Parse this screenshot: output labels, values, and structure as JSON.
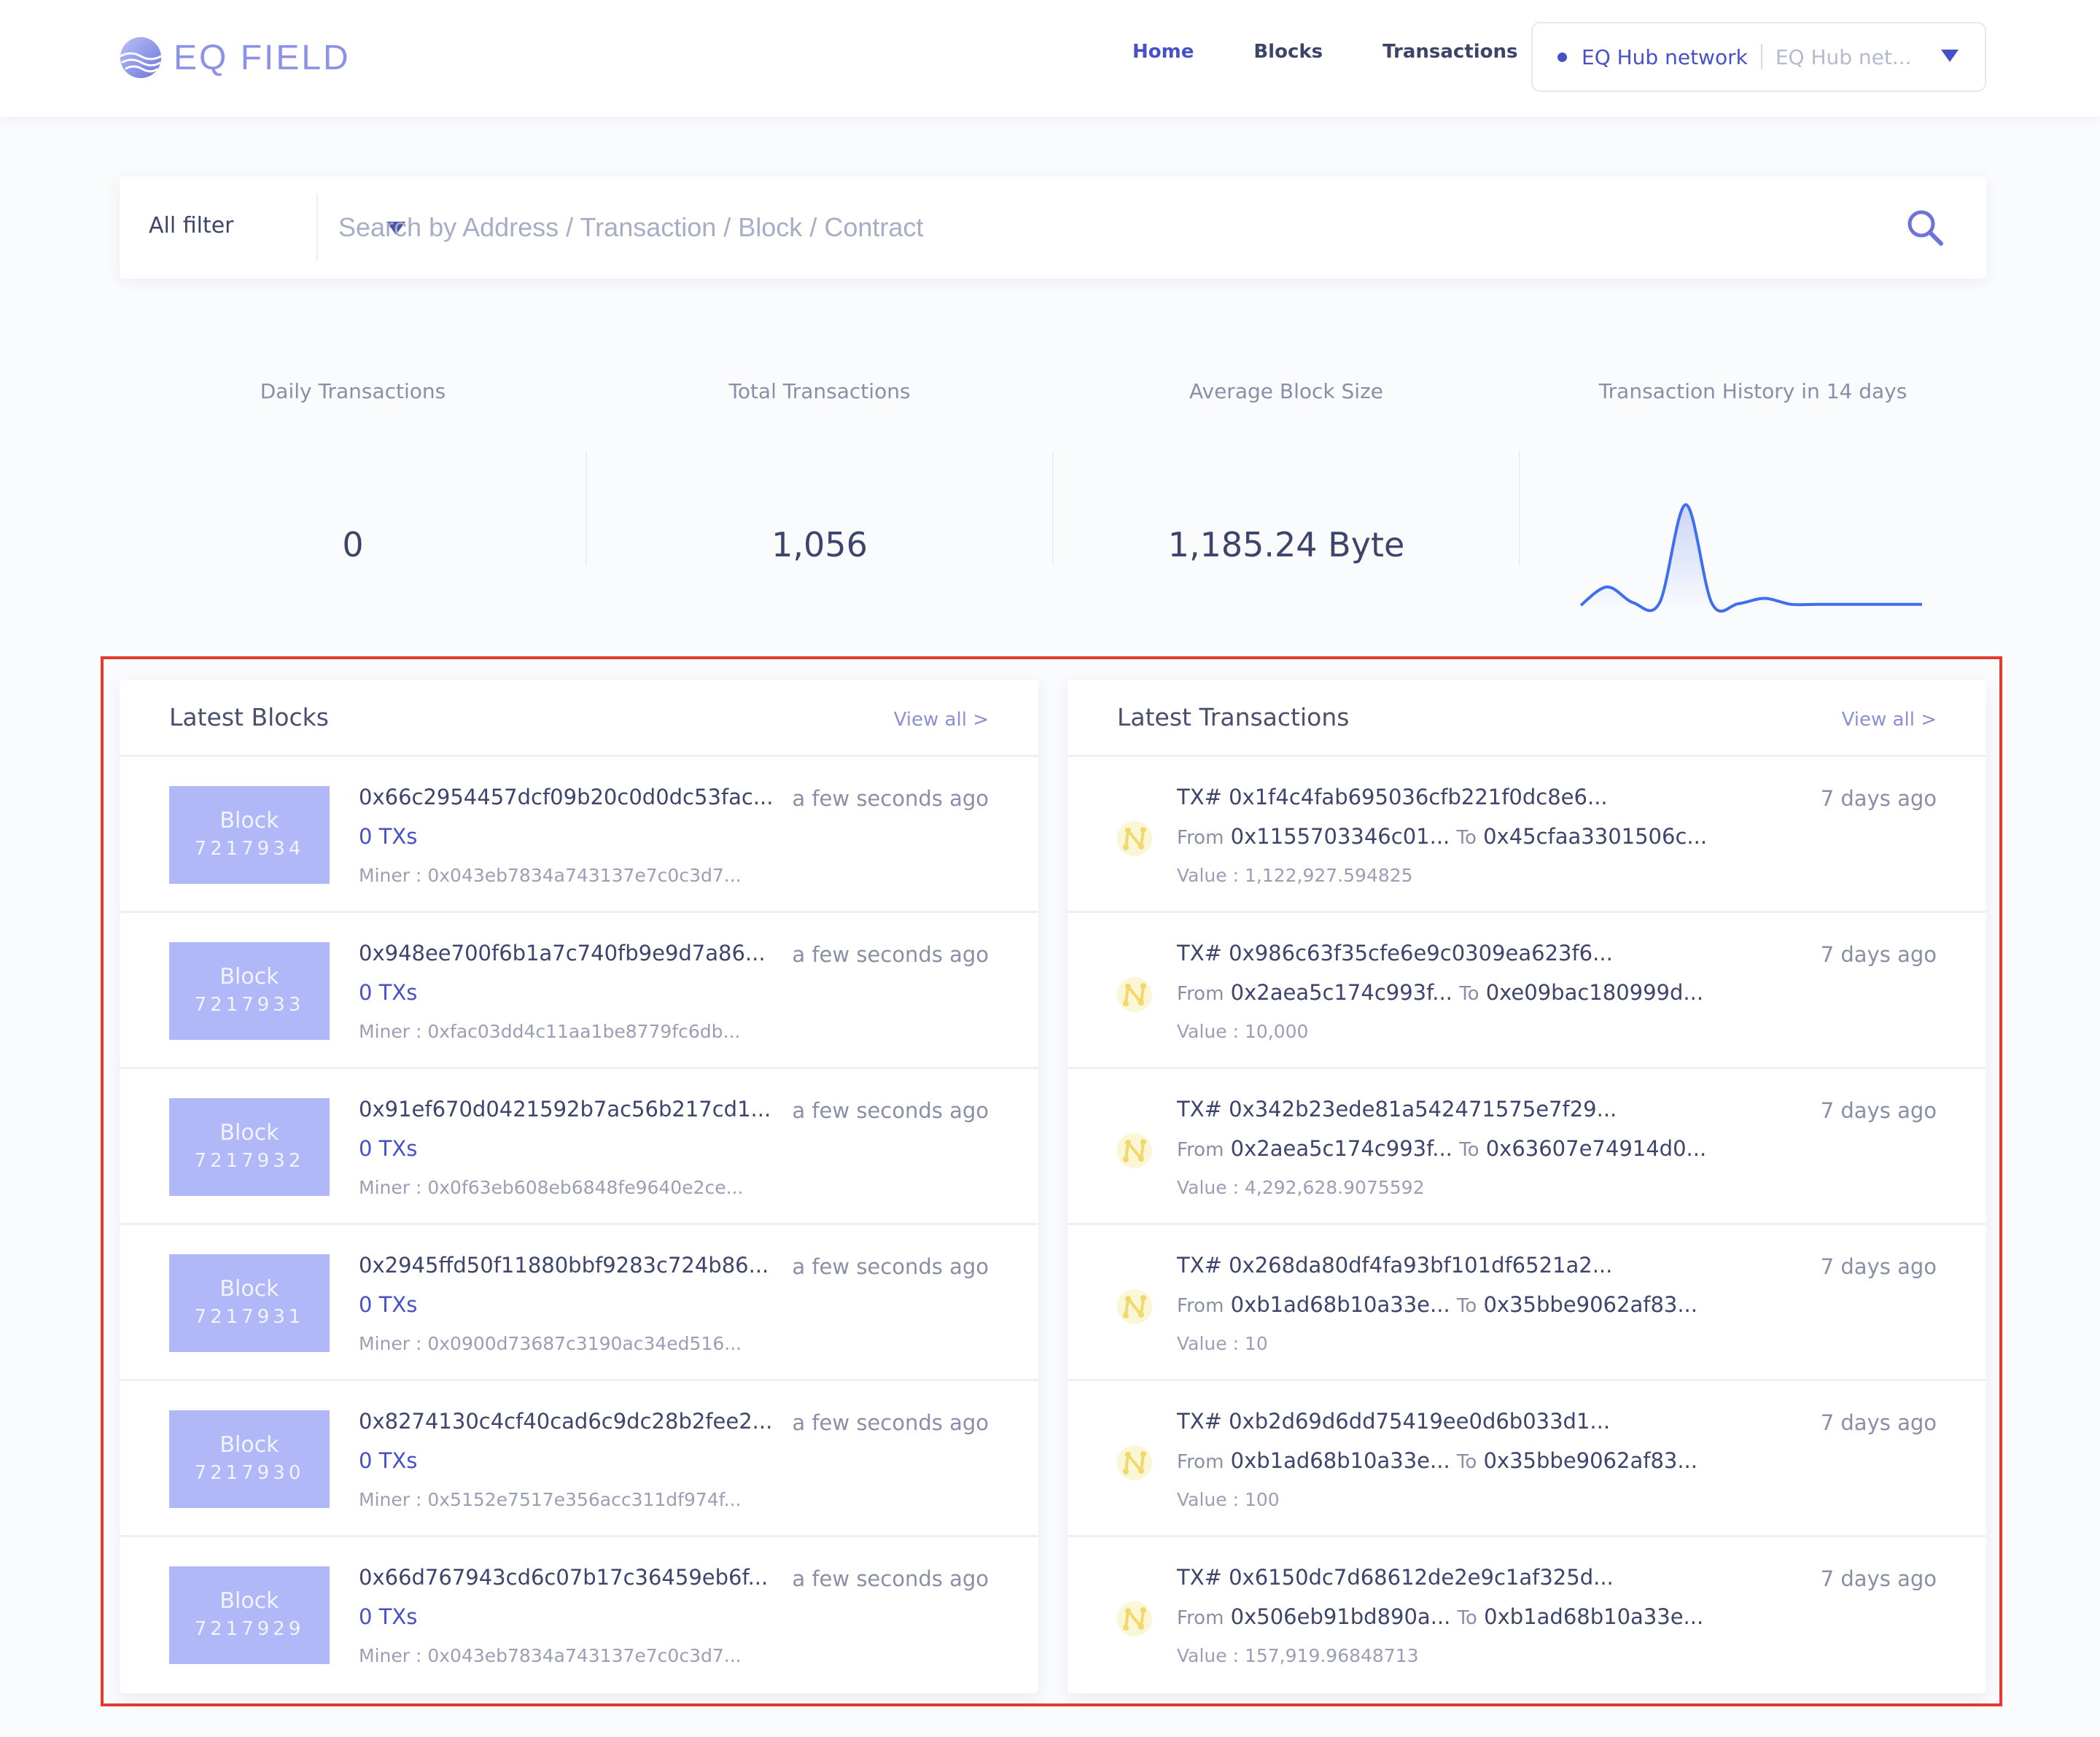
{
  "brand": {
    "name": "EQ FIELD",
    "logo_icon": "eq-field-logo-icon",
    "color": "#8b93e6"
  },
  "nav": {
    "items": [
      {
        "label": "Home",
        "active": true
      },
      {
        "label": "Blocks",
        "active": false
      },
      {
        "label": "Transactions",
        "active": false
      }
    ]
  },
  "network": {
    "active": "EQ Hub network",
    "other": "EQ Hub net...",
    "icon": "caret-down-icon"
  },
  "search": {
    "filter_label": "All filter",
    "placeholder": "Search by Address / Transaction / Block / Contract",
    "value": "",
    "icon": "search-icon"
  },
  "stats": [
    {
      "label": "Daily Transactions",
      "value": "0"
    },
    {
      "label": "Total Transactions",
      "value": "1,056"
    },
    {
      "label": "Average Block Size",
      "value": "1,185.24 Byte"
    },
    {
      "label": "Transaction History in 14 days"
    }
  ],
  "chart_data": {
    "type": "line",
    "title": "Transaction History in 14 days",
    "xlabel": "",
    "ylabel": "",
    "grid": false,
    "axes_visible": false,
    "series": [
      {
        "values": [
          0,
          58,
          8,
          8,
          318,
          5,
          5,
          22,
          3,
          3,
          3,
          3,
          3,
          3
        ]
      }
    ]
  },
  "blocks": {
    "title": "Latest Blocks",
    "view_all": "View all >",
    "badge_label": "Block",
    "items": [
      {
        "number": "7217934",
        "hash": "0x66c2954457dcf09b20c0d0dc53fac...",
        "time": "a few seconds ago",
        "txs": "0 TXs",
        "miner": "Miner : 0x043eb7834a743137e7c0c3d7..."
      },
      {
        "number": "7217933",
        "hash": "0x948ee700f6b1a7c740fb9e9d7a86...",
        "time": "a few seconds ago",
        "txs": "0 TXs",
        "miner": "Miner : 0xfac03dd4c11aa1be8779fc6db..."
      },
      {
        "number": "7217932",
        "hash": "0x91ef670d0421592b7ac56b217cd1...",
        "time": "a few seconds ago",
        "txs": "0 TXs",
        "miner": "Miner : 0x0f63eb608eb6848fe9640e2ce..."
      },
      {
        "number": "7217931",
        "hash": "0x2945ffd50f11880bbf9283c724b86...",
        "time": "a few seconds ago",
        "txs": "0 TXs",
        "miner": "Miner : 0x0900d73687c3190ac34ed516..."
      },
      {
        "number": "7217930",
        "hash": "0x8274130c4cf40cad6c9dc28b2fee2...",
        "time": "a few seconds ago",
        "txs": "0 TXs",
        "miner": "Miner : 0x5152e7517e356acc311df974f..."
      },
      {
        "number": "7217929",
        "hash": "0x66d767943cd6c07b17c36459eb6f...",
        "time": "a few seconds ago",
        "txs": "0 TXs",
        "miner": "Miner : 0x043eb7834a743137e7c0c3d7..."
      }
    ]
  },
  "transactions": {
    "title": "Latest Transactions",
    "view_all": "View all >",
    "from_label": "From",
    "to_label": "To",
    "icon": "transaction-node-icon",
    "items": [
      {
        "hash": "TX# 0x1f4c4fab695036cfb221f0dc8e6...",
        "time": "7 days ago",
        "from": "0x1155703346c01...",
        "to": "0x45cfaa3301506c...",
        "value": "Value : 1,122,927.594825"
      },
      {
        "hash": "TX# 0x986c63f35cfe6e9c0309ea623f6...",
        "time": "7 days ago",
        "from": "0x2aea5c174c993f...",
        "to": "0xe09bac180999d...",
        "value": "Value : 10,000"
      },
      {
        "hash": "TX# 0x342b23ede81a542471575e7f29...",
        "time": "7 days ago",
        "from": "0x2aea5c174c993f...",
        "to": "0x63607e74914d0...",
        "value": "Value : 4,292,628.9075592"
      },
      {
        "hash": "TX# 0x268da80df4fa93bf101df6521a2...",
        "time": "7 days ago",
        "from": "0xb1ad68b10a33e...",
        "to": "0x35bbe9062af83...",
        "value": "Value : 10"
      },
      {
        "hash": "TX# 0xb2d69d6dd75419ee0d6b033d1...",
        "time": "7 days ago",
        "from": "0xb1ad68b10a33e...",
        "to": "0x35bbe9062af83...",
        "value": "Value : 100"
      },
      {
        "hash": "TX# 0x6150dc7d68612de2e9c1af325d...",
        "time": "7 days ago",
        "from": "0x506eb91bd890a...",
        "to": "0xb1ad68b10a33e...",
        "value": "Value : 157,919.96848713"
      }
    ]
  },
  "colors": {
    "accent": "#4651c8",
    "badge": "#b0b8f7",
    "highlight": "#e03b2c",
    "tx_icon": "#f2e07a"
  }
}
